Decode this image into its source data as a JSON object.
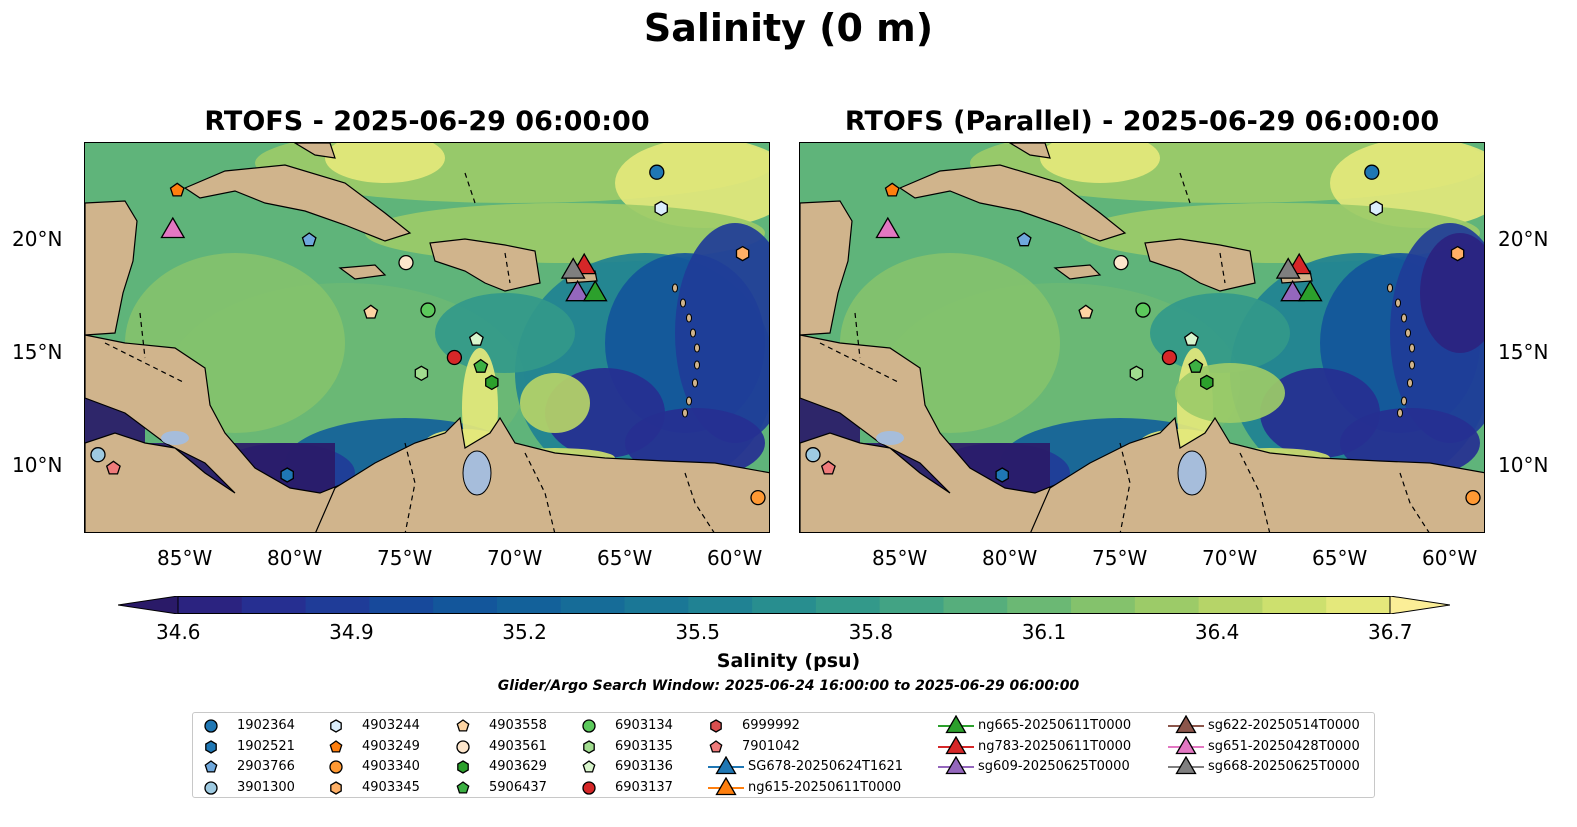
{
  "figure": {
    "title": "Salinity (0 m)",
    "panels": [
      {
        "title": "RTOFS - 2025-06-29 06:00:00"
      },
      {
        "title": "RTOFS (Parallel) - 2025-06-29 06:00:00"
      }
    ],
    "lon_labels": [
      "85°W",
      "80°W",
      "75°W",
      "70°W",
      "65°W",
      "60°W"
    ],
    "lat_labels": [
      "20°N",
      "15°N",
      "10°N"
    ],
    "colorbar": {
      "label": "Salinity (psu)",
      "ticks": [
        "34.6",
        "34.9",
        "35.2",
        "35.5",
        "35.8",
        "36.1",
        "36.4",
        "36.7"
      ],
      "colors": [
        "#2a1a68",
        "#2b2380",
        "#262f91",
        "#1f3c98",
        "#17499b",
        "#13569b",
        "#13619a",
        "#166c98",
        "#1a7796",
        "#208293",
        "#288e8f",
        "#33998a",
        "#42a384",
        "#56ae7c",
        "#6bb874",
        "#84c26c",
        "#9ccb68",
        "#b6d468",
        "#cde06e",
        "#e4e87b",
        "#fbee97"
      ]
    },
    "search_window": "Glider/Argo Search Window: 2025-06-24 16:00:00 to 2025-06-29 06:00:00",
    "colors": {
      "land": "#d0b48c",
      "ocean_mid": "#5fb47a",
      "deep_ocean": "#2a1a68",
      "lake": "#a6bddb"
    }
  },
  "legend": [
    {
      "label": "1902364",
      "marker": "circle",
      "color": "#1f77b4"
    },
    {
      "label": "1902521",
      "marker": "hexagon",
      "color": "#1f77b4"
    },
    {
      "label": "2903766",
      "marker": "pentagon",
      "color": "#6fa8dc"
    },
    {
      "label": "3901300",
      "marker": "circle",
      "color": "#9ecae1"
    },
    {
      "label": "4903244",
      "marker": "hexagon",
      "color": "#dbeefc"
    },
    {
      "label": "4903249",
      "marker": "pentagon",
      "color": "#ff7f0e"
    },
    {
      "label": "4903340",
      "marker": "circle",
      "color": "#ff9933"
    },
    {
      "label": "4903345",
      "marker": "hexagon",
      "color": "#ffb066"
    },
    {
      "label": "4903558",
      "marker": "pentagon",
      "color": "#fdd4a3"
    },
    {
      "label": "4903561",
      "marker": "circle",
      "color": "#fde6cc"
    },
    {
      "label": "4903629",
      "marker": "hexagon",
      "color": "#2ca02c"
    },
    {
      "label": "5906437",
      "marker": "pentagon",
      "color": "#3cb043"
    },
    {
      "label": "6903134",
      "marker": "circle",
      "color": "#5cc95c"
    },
    {
      "label": "6903135",
      "marker": "hexagon",
      "color": "#a1dc8f"
    },
    {
      "label": "6903136",
      "marker": "pentagon",
      "color": "#d8f5cc"
    },
    {
      "label": "6903137",
      "marker": "circle",
      "color": "#d62728"
    },
    {
      "label": "6999992",
      "marker": "hexagon",
      "color": "#d94f4f"
    },
    {
      "label": "7901042",
      "marker": "pentagon",
      "color": "#ef7b7b"
    },
    {
      "label": "SG678-20250624T1621",
      "marker": "triangle",
      "color": "#1f77b4"
    },
    {
      "label": "ng615-20250611T0000",
      "marker": "triangle",
      "color": "#ff7f0e"
    },
    {
      "label": "ng665-20250611T0000",
      "marker": "triangle",
      "color": "#2ca02c"
    },
    {
      "label": "ng783-20250611T0000",
      "marker": "triangle",
      "color": "#d62728"
    },
    {
      "label": "sg609-20250625T0000",
      "marker": "triangle",
      "color": "#9467bd"
    },
    {
      "label": "sg622-20250514T0000",
      "marker": "triangle",
      "color": "#8c564b"
    },
    {
      "label": "sg651-20250428T0000",
      "marker": "triangle",
      "color": "#e377c2"
    },
    {
      "label": "sg668-20250625T0000",
      "marker": "triangle",
      "color": "#7f7f7f"
    }
  ]
}
